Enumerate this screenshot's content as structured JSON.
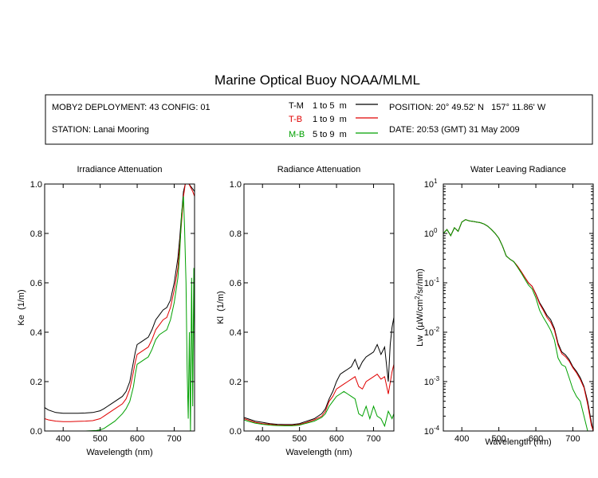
{
  "figure": {
    "title": "Marine Optical Buoy NOAA/MLML",
    "info": {
      "deployment": "MOBY2 DEPLOYMENT: 43 CONFIG: 01",
      "station": "STATION: Lanai Mooring",
      "position": "POSITION: 20° 49.52' N   157° 11.86' W",
      "date": "DATE: 20:53 (GMT) 31 May 2009"
    },
    "legend": [
      {
        "code": "T-M",
        "range": "1 to 5  m",
        "color": "#000000"
      },
      {
        "code": "T-B",
        "range": "1 to 9  m",
        "color": "#e00000"
      },
      {
        "code": "M-B",
        "range": "5 to 9  m",
        "color": "#00a000"
      }
    ]
  },
  "chart_data": [
    {
      "type": "line",
      "title": "Irradiance Attenuation",
      "xlabel": "Wavelength (nm)",
      "ylabel": "Ke  (1/m)",
      "xlim": [
        350,
        755
      ],
      "ylim": [
        0,
        1
      ],
      "xticks": [
        400,
        500,
        600,
        700
      ],
      "yticks": [
        0,
        0.2,
        0.4,
        0.6,
        0.8,
        1.0
      ],
      "ytick_labels": [
        "0.0",
        "0.2",
        "0.4",
        "0.6",
        "0.8",
        "1.0"
      ],
      "series": [
        {
          "name": "T-M",
          "color": "#000000",
          "x": [
            350,
            360,
            380,
            400,
            420,
            440,
            460,
            480,
            500,
            510,
            520,
            540,
            560,
            570,
            580,
            590,
            595,
            600,
            610,
            620,
            630,
            640,
            650,
            660,
            670,
            680,
            690,
            700,
            710,
            715,
            720,
            725,
            730,
            740,
            750,
            755
          ],
          "y": [
            0.095,
            0.085,
            0.075,
            0.072,
            0.072,
            0.072,
            0.073,
            0.075,
            0.082,
            0.09,
            0.1,
            0.12,
            0.14,
            0.16,
            0.2,
            0.28,
            0.32,
            0.35,
            0.36,
            0.37,
            0.38,
            0.41,
            0.45,
            0.47,
            0.49,
            0.5,
            0.53,
            0.6,
            0.7,
            0.78,
            0.88,
            0.97,
            1.0,
            1.0,
            0.98,
            0.97
          ]
        },
        {
          "name": "T-B",
          "color": "#e00000",
          "x": [
            350,
            360,
            380,
            400,
            420,
            440,
            460,
            480,
            500,
            510,
            520,
            540,
            560,
            570,
            580,
            590,
            595,
            600,
            610,
            620,
            630,
            640,
            650,
            660,
            670,
            680,
            690,
            700,
            710,
            715,
            720,
            725,
            730,
            740,
            750,
            755
          ],
          "y": [
            0.05,
            0.045,
            0.04,
            0.038,
            0.038,
            0.039,
            0.04,
            0.042,
            0.05,
            0.06,
            0.07,
            0.09,
            0.11,
            0.13,
            0.17,
            0.24,
            0.28,
            0.31,
            0.32,
            0.33,
            0.34,
            0.37,
            0.41,
            0.43,
            0.45,
            0.46,
            0.5,
            0.57,
            0.66,
            0.75,
            0.85,
            0.95,
            1.0,
            1.0,
            0.97,
            0.95
          ]
        },
        {
          "name": "M-B",
          "color": "#00a000",
          "x": [
            350,
            370,
            400,
            430,
            460,
            490,
            500,
            510,
            520,
            540,
            560,
            570,
            580,
            590,
            595,
            600,
            610,
            620,
            630,
            640,
            650,
            660,
            670,
            680,
            690,
            700,
            710,
            715,
            720,
            725,
            728,
            732,
            735,
            738,
            741,
            744,
            747,
            750,
            753,
            755
          ],
          "y": [
            0.0,
            0.0,
            0.0,
            0.0,
            0.0,
            0.002,
            0.005,
            0.01,
            0.02,
            0.04,
            0.07,
            0.09,
            0.12,
            0.18,
            0.23,
            0.27,
            0.28,
            0.29,
            0.3,
            0.33,
            0.37,
            0.39,
            0.4,
            0.41,
            0.45,
            0.52,
            0.62,
            0.72,
            0.88,
            0.95,
            0.82,
            0.6,
            0.25,
            0.05,
            0.4,
            0.0,
            0.62,
            0.1,
            0.66,
            0.3
          ]
        }
      ]
    },
    {
      "type": "line",
      "title": "Radiance Attenuation",
      "xlabel": "Wavelength (nm)",
      "ylabel": "Kl  (1/m)",
      "xlim": [
        350,
        755
      ],
      "ylim": [
        0,
        1
      ],
      "xticks": [
        400,
        500,
        600,
        700
      ],
      "yticks": [
        0,
        0.2,
        0.4,
        0.6,
        0.8,
        1.0
      ],
      "ytick_labels": [
        "0.0",
        "0.2",
        "0.4",
        "0.6",
        "0.8",
        "1.0"
      ],
      "series": [
        {
          "name": "T-M",
          "color": "#000000",
          "x": [
            350,
            360,
            380,
            400,
            420,
            440,
            460,
            480,
            500,
            520,
            540,
            560,
            570,
            580,
            590,
            600,
            610,
            620,
            630,
            640,
            650,
            660,
            670,
            680,
            690,
            700,
            710,
            720,
            730,
            740,
            745,
            750,
            755
          ],
          "y": [
            0.055,
            0.05,
            0.04,
            0.035,
            0.03,
            0.027,
            0.026,
            0.026,
            0.03,
            0.04,
            0.05,
            0.07,
            0.09,
            0.13,
            0.16,
            0.2,
            0.23,
            0.24,
            0.25,
            0.26,
            0.29,
            0.25,
            0.28,
            0.3,
            0.31,
            0.32,
            0.35,
            0.31,
            0.34,
            0.2,
            0.35,
            0.42,
            0.46
          ]
        },
        {
          "name": "T-B",
          "color": "#e00000",
          "x": [
            350,
            360,
            380,
            400,
            420,
            440,
            460,
            480,
            500,
            520,
            540,
            560,
            570,
            580,
            590,
            600,
            610,
            620,
            630,
            640,
            650,
            660,
            670,
            680,
            690,
            700,
            710,
            720,
            730,
            740,
            750,
            755
          ],
          "y": [
            0.05,
            0.045,
            0.035,
            0.03,
            0.027,
            0.024,
            0.023,
            0.023,
            0.026,
            0.035,
            0.045,
            0.06,
            0.08,
            0.12,
            0.14,
            0.17,
            0.18,
            0.19,
            0.2,
            0.21,
            0.22,
            0.18,
            0.17,
            0.2,
            0.21,
            0.22,
            0.23,
            0.21,
            0.22,
            0.15,
            0.24,
            0.27
          ]
        },
        {
          "name": "M-B",
          "color": "#00a000",
          "x": [
            350,
            360,
            380,
            400,
            420,
            440,
            460,
            480,
            500,
            520,
            540,
            560,
            570,
            580,
            590,
            600,
            610,
            620,
            630,
            640,
            650,
            660,
            670,
            680,
            690,
            700,
            710,
            720,
            730,
            740,
            750,
            755
          ],
          "y": [
            0.045,
            0.04,
            0.032,
            0.027,
            0.024,
            0.022,
            0.021,
            0.021,
            0.024,
            0.032,
            0.04,
            0.055,
            0.07,
            0.1,
            0.12,
            0.14,
            0.15,
            0.16,
            0.15,
            0.14,
            0.13,
            0.07,
            0.06,
            0.1,
            0.05,
            0.1,
            0.06,
            0.05,
            0.02,
            0.08,
            0.05,
            0.07
          ]
        }
      ]
    },
    {
      "type": "line",
      "title": "Water Leaving Radiance",
      "xlabel": "Wavelength (nm)",
      "ylabel": "Lw  (μW/cm²/sr/nm)",
      "ylabel_parts": {
        "pre": "Lw  (",
        "mu": "μ",
        "mid": "W/cm",
        "sup": "2",
        "post": "/sr/nm)"
      },
      "xlim": [
        350,
        755
      ],
      "ylim": [
        0.0001,
        10
      ],
      "yscale": "log",
      "xticks": [
        400,
        500,
        600,
        700
      ],
      "yticks": [
        -4,
        -3,
        -2,
        -1,
        0,
        1
      ],
      "ytick_labels": [
        {
          "base": "10",
          "exp": "-4"
        },
        {
          "base": "10",
          "exp": "-3"
        },
        {
          "base": "10",
          "exp": "-2"
        },
        {
          "base": "10",
          "exp": "-1"
        },
        {
          "base": "10",
          "exp": "0"
        },
        {
          "base": "10",
          "exp": "1"
        }
      ],
      "series": [
        {
          "name": "T-M",
          "color": "#000000",
          "x": [
            350,
            360,
            370,
            380,
            390,
            400,
            410,
            420,
            430,
            440,
            450,
            460,
            470,
            480,
            490,
            500,
            510,
            520,
            530,
            540,
            550,
            560,
            570,
            580,
            590,
            600,
            610,
            620,
            630,
            640,
            650,
            660,
            670,
            680,
            690,
            700,
            710,
            720,
            730,
            740,
            750,
            755
          ],
          "y": [
            1.0,
            1.2,
            0.9,
            1.3,
            1.1,
            1.7,
            1.9,
            1.8,
            1.75,
            1.7,
            1.65,
            1.55,
            1.4,
            1.2,
            1.0,
            0.8,
            0.55,
            0.35,
            0.3,
            0.27,
            0.22,
            0.17,
            0.13,
            0.1,
            0.085,
            0.06,
            0.04,
            0.03,
            0.022,
            0.018,
            0.012,
            0.006,
            0.004,
            0.0035,
            0.0028,
            0.002,
            0.0016,
            0.0012,
            0.0008,
            0.0004,
            0.00015,
            0.0001
          ]
        },
        {
          "name": "T-B",
          "color": "#e00000",
          "x": [
            350,
            360,
            370,
            380,
            390,
            400,
            410,
            420,
            430,
            440,
            450,
            460,
            470,
            480,
            490,
            500,
            510,
            520,
            530,
            540,
            550,
            560,
            570,
            580,
            590,
            600,
            610,
            620,
            630,
            640,
            650,
            660,
            670,
            680,
            690,
            700,
            710,
            720,
            730,
            740,
            750,
            755
          ],
          "y": [
            1.0,
            1.2,
            0.9,
            1.3,
            1.1,
            1.7,
            1.9,
            1.8,
            1.75,
            1.7,
            1.65,
            1.55,
            1.4,
            1.2,
            1.0,
            0.8,
            0.55,
            0.35,
            0.3,
            0.27,
            0.22,
            0.17,
            0.13,
            0.1,
            0.085,
            0.058,
            0.038,
            0.028,
            0.02,
            0.016,
            0.011,
            0.0055,
            0.0037,
            0.0032,
            0.0026,
            0.0019,
            0.0015,
            0.0011,
            0.00075,
            0.00035,
            0.00013,
            0.0001
          ]
        },
        {
          "name": "M-B",
          "color": "#00a000",
          "x": [
            350,
            360,
            370,
            380,
            390,
            400,
            410,
            420,
            430,
            440,
            450,
            460,
            470,
            480,
            490,
            500,
            510,
            520,
            530,
            540,
            550,
            560,
            570,
            580,
            590,
            600,
            610,
            620,
            630,
            640,
            650,
            660,
            670,
            680,
            690,
            700,
            710,
            720,
            730,
            740,
            745
          ],
          "y": [
            1.0,
            1.2,
            0.9,
            1.3,
            1.1,
            1.7,
            1.9,
            1.8,
            1.75,
            1.7,
            1.65,
            1.55,
            1.4,
            1.2,
            1.0,
            0.8,
            0.55,
            0.35,
            0.3,
            0.27,
            0.21,
            0.16,
            0.12,
            0.09,
            0.075,
            0.05,
            0.028,
            0.02,
            0.015,
            0.011,
            0.007,
            0.003,
            0.0022,
            0.002,
            0.0012,
            0.0007,
            0.0005,
            0.0004,
            0.0002,
            0.0001,
            0.0001
          ]
        }
      ]
    }
  ]
}
